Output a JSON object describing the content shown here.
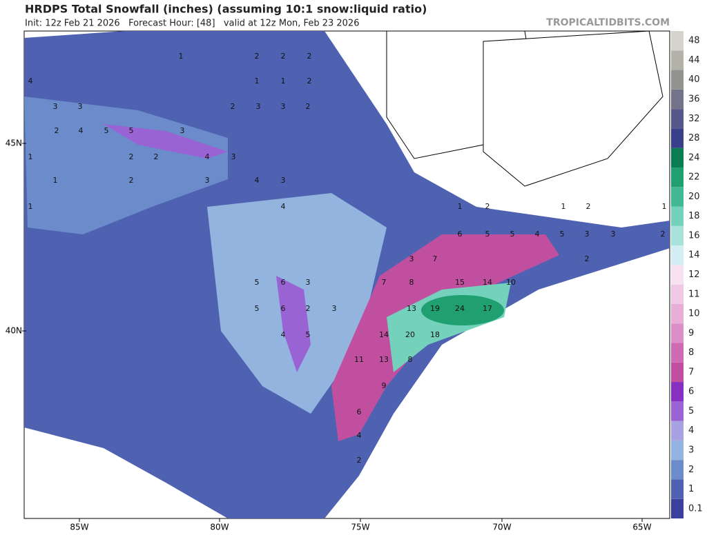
{
  "header": {
    "title": "HRDPS Total Snowfall (inches) (assuming 10:1 snow:liquid ratio)",
    "subtitle": "Init: 12z Feb 21 2026   Forecast Hour: [48]   valid at 12z Mon, Feb 23 2026",
    "site": "TROPICALTIDBITS.COM"
  },
  "lat_labels": [
    "45N",
    "40N"
  ],
  "lon_labels": [
    "85W",
    "80W",
    "75W",
    "70W",
    "65W"
  ],
  "colorbar": {
    "labels": [
      "0.1",
      "1",
      "2",
      "3",
      "4",
      "5",
      "6",
      "7",
      "8",
      "9",
      "10",
      "11",
      "12",
      "14",
      "16",
      "18",
      "20",
      "22",
      "24",
      "28",
      "32",
      "36",
      "40",
      "44",
      "48"
    ],
    "colors": [
      "#3b3f9c",
      "#4f62b2",
      "#6c8bcb",
      "#93b4de",
      "#a9a2e2",
      "#9a63d3",
      "#8630c2",
      "#c0509f",
      "#cf6bb3",
      "#dc8ec6",
      "#e7aed6",
      "#efc9e3",
      "#f6e2f0",
      "#d2eef2",
      "#a8e2da",
      "#74d1bb",
      "#43b993",
      "#209f70",
      "#0b7b52",
      "#3a3f8a",
      "#56588c",
      "#737389",
      "#929290",
      "#b2b2a8",
      "#d4d4cc"
    ]
  },
  "map_labels": [
    "1",
    "2",
    "2",
    "2",
    "4",
    "3",
    "3",
    "4",
    "5",
    "5",
    "3",
    "2",
    "3",
    "3",
    "2",
    "1",
    "1",
    "2",
    "2",
    "1",
    "2",
    "2",
    "3",
    "1",
    "2",
    "4",
    "3",
    "4",
    "3",
    "1",
    "4",
    "6",
    "3",
    "5",
    "6",
    "2",
    "3",
    "5",
    "4",
    "5",
    "7",
    "8",
    "15",
    "14",
    "10",
    "13",
    "19",
    "24",
    "17",
    "14",
    "20",
    "18",
    "11",
    "13",
    "8",
    "9",
    "6",
    "4",
    "2",
    "6",
    "5",
    "5",
    "4",
    "5",
    "3",
    "3",
    "2",
    "7",
    "3",
    "2",
    "1",
    "2",
    "1",
    "2",
    "1"
  ]
}
